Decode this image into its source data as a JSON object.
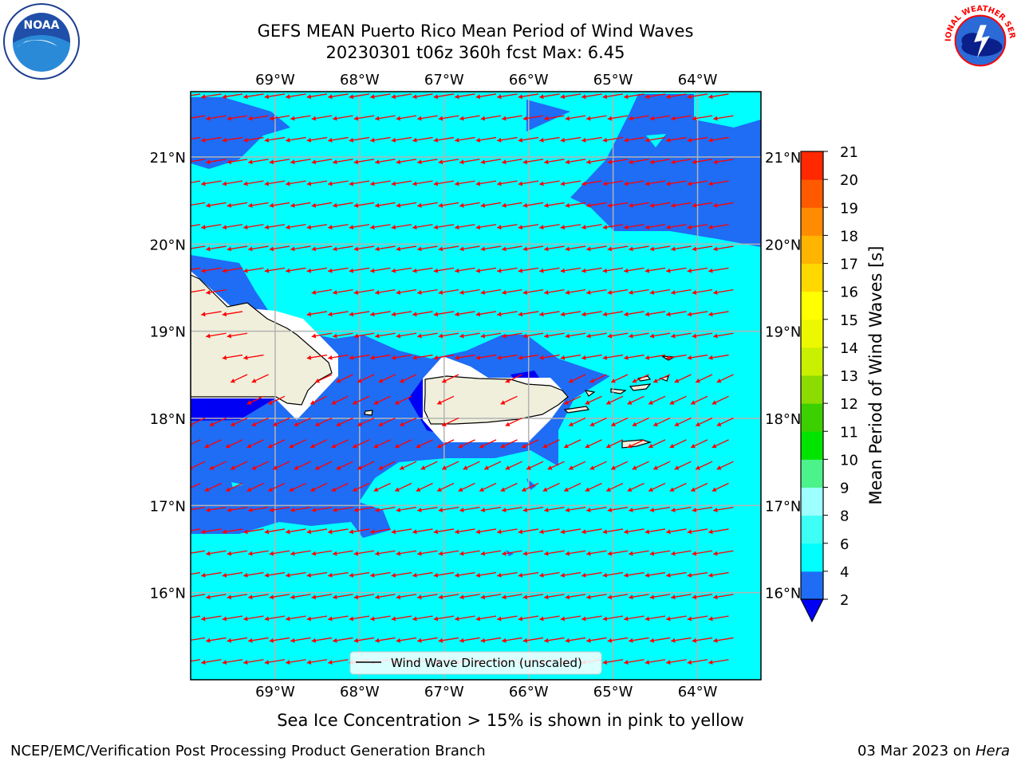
{
  "title": {
    "line1": "GEFS MEAN Puerto Rico Mean Period of Wind Waves",
    "line2": "20230301 t06z 360h fcst   Max: 6.45"
  },
  "map": {
    "lon_ticks": [
      "69°W",
      "68°W",
      "67°W",
      "66°W",
      "65°W",
      "64°W"
    ],
    "lon_values": [
      -69,
      -68,
      -67,
      -66,
      -65,
      -64
    ],
    "lat_ticks": [
      "21°N",
      "20°N",
      "19°N",
      "18°N",
      "17°N",
      "16°N"
    ],
    "lat_values": [
      21,
      20,
      19,
      18,
      17,
      16
    ],
    "lon_range": [
      -70,
      -63.25
    ],
    "lat_range": [
      15,
      21.75
    ],
    "legend_label": "Wind Wave Direction (unscaled)",
    "legend_position": "bottom-center",
    "grid": true,
    "arrow_color": "#ff0000",
    "land_color": "#efefdc"
  },
  "colorbar": {
    "label": "Mean Period of Wind Waves [s]",
    "ticks": [
      "2",
      "4",
      "6",
      "8",
      "9",
      "10",
      "11",
      "12",
      "13",
      "14",
      "15",
      "16",
      "17",
      "18",
      "19",
      "20",
      "21"
    ],
    "colors": [
      "#1f6cf5",
      "#00ffff",
      "#3dfff5",
      "#9effff",
      "#4cf28a",
      "#00e400",
      "#3cd000",
      "#8cdc00",
      "#c8f000",
      "#ecf800",
      "#ffff00",
      "#ffd800",
      "#ffb400",
      "#ff8c00",
      "#ff5a00",
      "#ff2800",
      "#ff0000"
    ],
    "under_color": "#0000f5"
  },
  "chart_data": {
    "type": "heatmap",
    "title": "GEFS MEAN Puerto Rico Mean Period of Wind Waves",
    "subtitle": "20230301 t06z 360h fcst   Max: 6.45",
    "variable_units": "s",
    "max_value": 6.45,
    "xlabel": "",
    "ylabel": "",
    "xlim": [
      -70,
      -63.25
    ],
    "ylim": [
      15,
      21.75
    ],
    "levels": [
      2,
      4,
      6,
      8,
      9,
      10,
      11,
      12,
      13,
      14,
      15,
      16,
      17,
      18,
      19,
      20,
      21
    ]
  },
  "footer": {
    "note": "Sea Ice Concentration > 15% is shown in pink to yellow",
    "left": "NCEP/EMC/Verification Post Processing Product Generation Branch",
    "right_date": "03 Mar 2023 on ",
    "right_host": "Hera"
  },
  "logos": {
    "noaa": "NOAA",
    "nws_text": "NATIONAL WEATHER SERVICE"
  }
}
